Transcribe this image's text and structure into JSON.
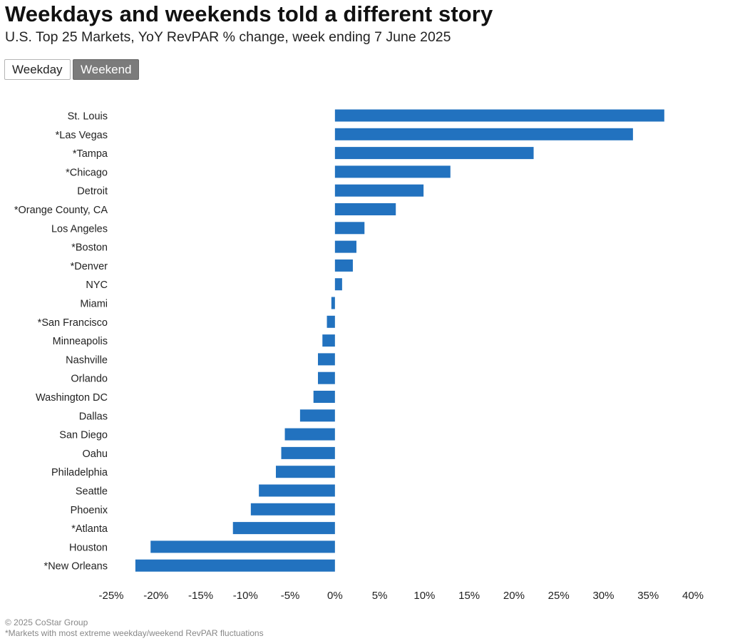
{
  "header": {
    "title": "Weekdays and weekends told a different story",
    "subtitle": "U.S. Top 25 Markets, YoY RevPAR % change, week ending 7 June 2025"
  },
  "toggles": {
    "weekday_label": "Weekday",
    "weekend_label": "Weekend",
    "selected": "Weekend"
  },
  "footer": {
    "copyright": "© 2025 CoStar Group",
    "note": "*Markets with most extreme weekday/weekend RevPAR fluctuations"
  },
  "colors": {
    "bar": "#2272BF",
    "active_toggle": "#7b7b7b"
  },
  "chart_data": {
    "type": "bar",
    "orientation": "horizontal",
    "categories": [
      "St. Louis",
      "*Las Vegas",
      "*Tampa",
      "*Chicago",
      "Detroit",
      "*Orange County, CA",
      "Los Angeles",
      "*Boston",
      "*Denver",
      "NYC",
      "Miami",
      "*San Francisco",
      "Minneapolis",
      "Nashville",
      "Orlando",
      "Washington DC",
      "Dallas",
      "San Diego",
      "Oahu",
      "Philadelphia",
      "Seattle",
      "Phoenix",
      "*Atlanta",
      "Houston",
      "*New Orleans"
    ],
    "values": [
      36.8,
      33.3,
      22.2,
      12.9,
      9.9,
      6.8,
      3.3,
      2.4,
      2.0,
      0.8,
      -0.4,
      -0.9,
      -1.4,
      -1.9,
      -1.9,
      -2.4,
      -3.9,
      -5.6,
      -6.0,
      -6.6,
      -8.5,
      -9.4,
      -11.4,
      -20.6,
      -22.3
    ],
    "xlim": [
      -25,
      40
    ],
    "xticks": [
      -25,
      -20,
      -15,
      -10,
      -5,
      0,
      5,
      10,
      15,
      20,
      25,
      30,
      35,
      40
    ],
    "xtick_labels": [
      "-25%",
      "-20%",
      "-15%",
      "-10%",
      "-5%",
      "0%",
      "5%",
      "10%",
      "15%",
      "20%",
      "25%",
      "30%",
      "35%",
      "40%"
    ],
    "grid": false,
    "legend": "none"
  }
}
